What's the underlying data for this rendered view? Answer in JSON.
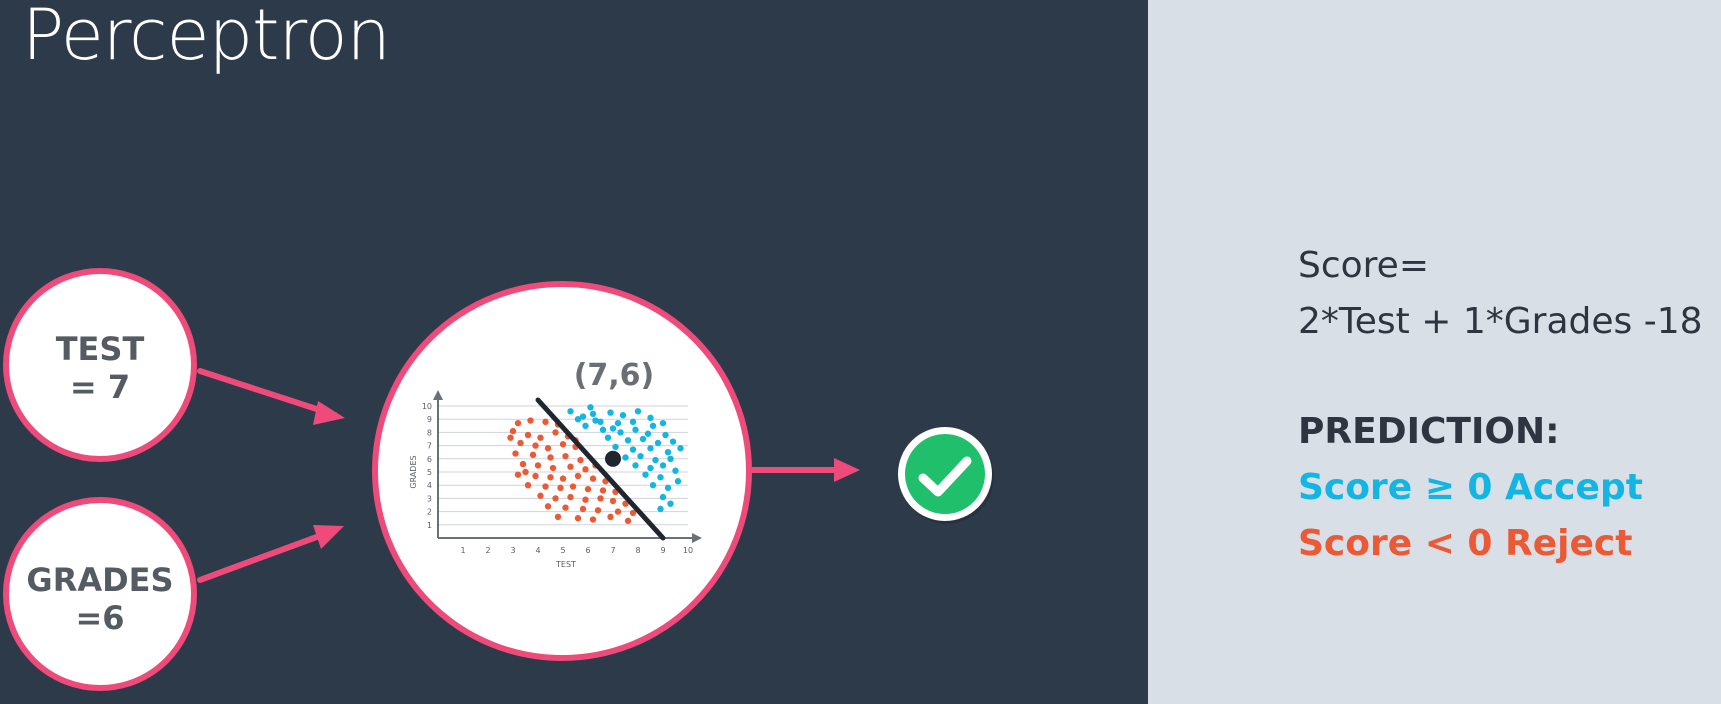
{
  "title": "Perceptron",
  "inputs": [
    {
      "line1": "TEST",
      "line2": "= 7"
    },
    {
      "line1": "GRADES",
      "line2": "=6"
    }
  ],
  "highlight_point_label": "(7,6)",
  "output_icon": "check-icon",
  "formula": {
    "line1": "Score=",
    "line2": "2*Test + 1*Grades -18"
  },
  "prediction": {
    "heading": "PREDICTION:",
    "accept": "Score ≥ 0 Accept",
    "reject": "Score < 0 Reject"
  },
  "colors": {
    "background": "#2d3a4a",
    "panel": "#d9dfe7",
    "arrow": "#ee4b7a",
    "accept": "#13b5e3",
    "reject": "#ec5a35",
    "check": "#1fbf6b"
  },
  "chart_data": {
    "type": "scatter",
    "xlabel": "TEST",
    "ylabel": "GRADES",
    "xlim": [
      0,
      10
    ],
    "ylim": [
      0,
      10
    ],
    "x_ticks": [
      1,
      2,
      3,
      4,
      5,
      6,
      7,
      8,
      9,
      10
    ],
    "y_ticks": [
      1,
      2,
      3,
      4,
      5,
      6,
      7,
      8,
      9,
      10
    ],
    "grid": true,
    "boundary": {
      "equation": "2*Test + 1*Grades - 18 = 0",
      "from": [
        4,
        10
      ],
      "to": [
        9,
        0
      ]
    },
    "highlight_point": [
      7,
      6
    ],
    "series": [
      {
        "color": "#13b5e3",
        "points": [
          [
            5.3,
            9.6
          ],
          [
            5.8,
            9.2
          ],
          [
            6.2,
            9.4
          ],
          [
            6.9,
            9.5
          ],
          [
            7.4,
            9.3
          ],
          [
            8.0,
            9.6
          ],
          [
            8.5,
            9.1
          ],
          [
            6.5,
            8.8
          ],
          [
            7.2,
            8.7
          ],
          [
            7.8,
            8.8
          ],
          [
            8.6,
            8.5
          ],
          [
            9.0,
            8.7
          ],
          [
            5.9,
            8.5
          ],
          [
            6.6,
            8.2
          ],
          [
            7.3,
            8.0
          ],
          [
            7.9,
            8.2
          ],
          [
            8.4,
            7.9
          ],
          [
            9.1,
            7.8
          ],
          [
            6.8,
            7.6
          ],
          [
            7.6,
            7.4
          ],
          [
            8.2,
            7.5
          ],
          [
            8.8,
            7.2
          ],
          [
            9.4,
            7.3
          ],
          [
            7.1,
            6.9
          ],
          [
            7.8,
            6.7
          ],
          [
            8.5,
            6.8
          ],
          [
            9.2,
            6.5
          ],
          [
            7.5,
            6.1
          ],
          [
            8.1,
            6.2
          ],
          [
            8.7,
            5.9
          ],
          [
            9.3,
            6.0
          ],
          [
            7.9,
            5.5
          ],
          [
            8.5,
            5.3
          ],
          [
            9.0,
            5.5
          ],
          [
            8.3,
            4.8
          ],
          [
            8.9,
            4.6
          ],
          [
            9.5,
            5.1
          ],
          [
            8.6,
            4.0
          ],
          [
            9.2,
            3.8
          ],
          [
            9.0,
            3.1
          ],
          [
            9.3,
            2.6
          ],
          [
            8.9,
            2.2
          ],
          [
            6.3,
            8.9
          ],
          [
            5.6,
            9.0
          ],
          [
            7.0,
            8.3
          ],
          [
            9.7,
            6.8
          ],
          [
            6.1,
            9.9
          ],
          [
            9.6,
            4.3
          ]
        ]
      },
      {
        "color": "#ec5a35",
        "points": [
          [
            3.2,
            8.7
          ],
          [
            3.7,
            8.9
          ],
          [
            4.3,
            8.8
          ],
          [
            3.0,
            8.1
          ],
          [
            3.6,
            7.8
          ],
          [
            4.1,
            7.6
          ],
          [
            4.7,
            8.0
          ],
          [
            5.2,
            7.7
          ],
          [
            3.3,
            7.2
          ],
          [
            3.9,
            7.0
          ],
          [
            4.4,
            6.8
          ],
          [
            5.0,
            7.1
          ],
          [
            5.5,
            6.9
          ],
          [
            3.1,
            6.4
          ],
          [
            3.8,
            6.3
          ],
          [
            4.5,
            6.1
          ],
          [
            5.1,
            6.2
          ],
          [
            5.7,
            5.9
          ],
          [
            3.4,
            5.6
          ],
          [
            4.0,
            5.5
          ],
          [
            4.6,
            5.3
          ],
          [
            5.3,
            5.4
          ],
          [
            5.9,
            5.2
          ],
          [
            6.3,
            5.5
          ],
          [
            3.2,
            4.8
          ],
          [
            3.9,
            4.7
          ],
          [
            4.5,
            4.6
          ],
          [
            5.0,
            4.5
          ],
          [
            5.6,
            4.7
          ],
          [
            6.2,
            4.5
          ],
          [
            6.7,
            4.3
          ],
          [
            3.6,
            4.0
          ],
          [
            4.3,
            3.9
          ],
          [
            4.9,
            3.8
          ],
          [
            5.4,
            3.9
          ],
          [
            6.0,
            3.7
          ],
          [
            6.6,
            3.6
          ],
          [
            7.1,
            3.5
          ],
          [
            4.1,
            3.2
          ],
          [
            4.7,
            3.0
          ],
          [
            5.3,
            3.1
          ],
          [
            5.9,
            2.9
          ],
          [
            6.5,
            3.0
          ],
          [
            7.0,
            2.8
          ],
          [
            7.5,
            2.6
          ],
          [
            4.4,
            2.4
          ],
          [
            5.1,
            2.3
          ],
          [
            5.8,
            2.2
          ],
          [
            6.4,
            2.1
          ],
          [
            7.2,
            2.0
          ],
          [
            7.8,
            1.9
          ],
          [
            4.8,
            1.6
          ],
          [
            5.6,
            1.5
          ],
          [
            6.2,
            1.4
          ],
          [
            6.9,
            1.6
          ],
          [
            7.6,
            1.3
          ],
          [
            3.5,
            5.0
          ],
          [
            2.9,
            7.6
          ],
          [
            4.8,
            8.6
          ],
          [
            5.5,
            7.4
          ]
        ]
      }
    ]
  }
}
